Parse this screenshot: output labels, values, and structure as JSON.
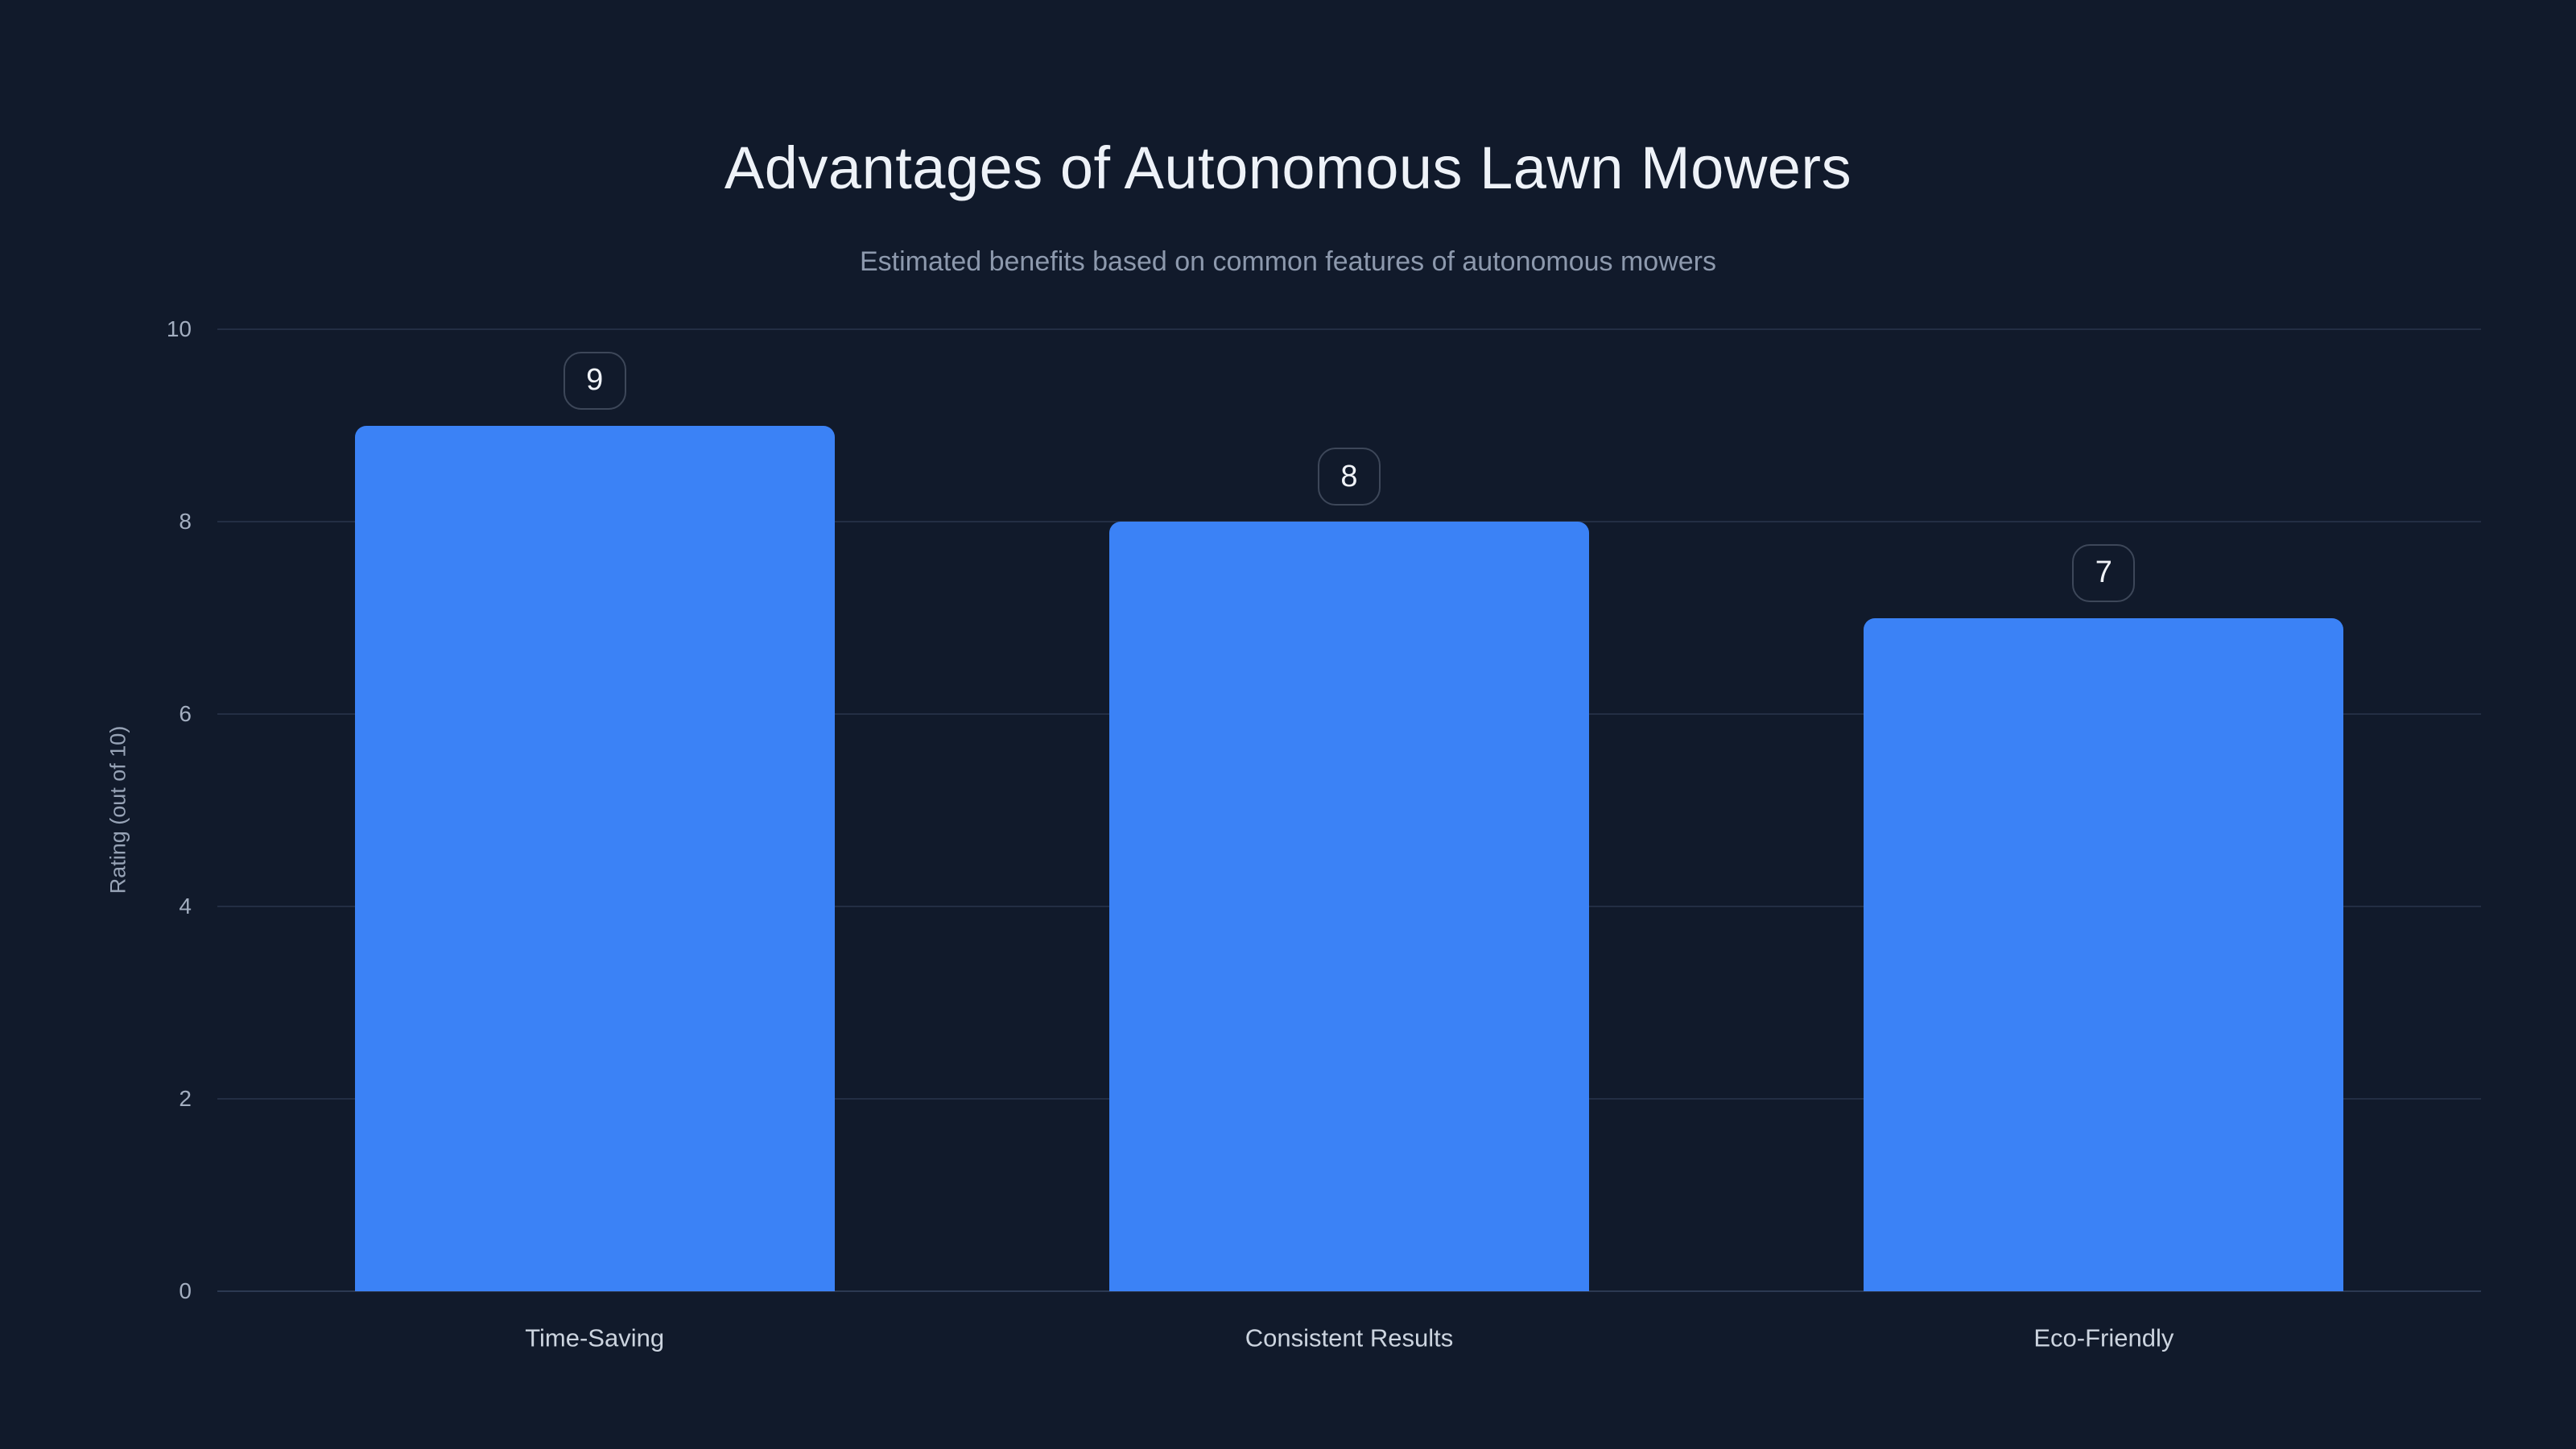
{
  "chart_data": {
    "type": "bar",
    "title": "Advantages of Autonomous Lawn Mowers",
    "subtitle": "Estimated benefits based on common features of autonomous mowers",
    "categories": [
      "Time-Saving",
      "Consistent Results",
      "Eco-Friendly"
    ],
    "values": [
      9,
      8,
      7
    ],
    "value_labels": [
      "9",
      "8",
      "7"
    ],
    "xlabel": "",
    "ylabel": "Rating (out of 10)",
    "ylim": [
      0,
      10
    ],
    "yticks": [
      0,
      2,
      4,
      6,
      8,
      10
    ],
    "grid": true,
    "legend": false,
    "colors": {
      "background": "#111a2b",
      "bar": "#3b82f6",
      "gridline": "#232e44",
      "zero_line": "#2c3952",
      "title_text": "#eef2f8",
      "subtitle_text": "#8d99ad",
      "tick_text": "#a3aec0",
      "category_text": "#ccd4df",
      "badge_border": "#3d4759",
      "badge_text": "#f0f3f8"
    }
  }
}
